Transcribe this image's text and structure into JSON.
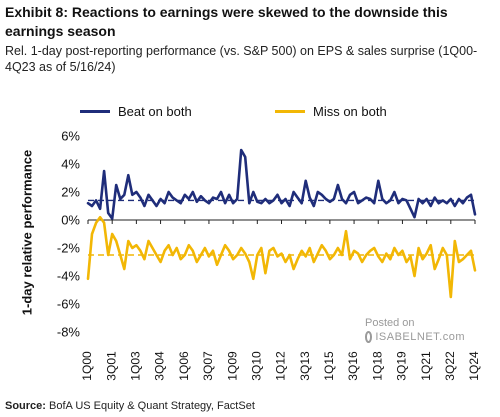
{
  "title": "Exhibit 8: Reactions to earnings were skewed to the downside this earnings season",
  "subtitle": "Rel. 1-day post-reporting performance (vs. S&P 500) on EPS & sales surprise (1Q00-4Q23 as of 5/16/24)",
  "source_label": "Source:",
  "source_text": "BofA US Equity & Quant Strategy, FactSet",
  "watermark": {
    "posted": "Posted on",
    "brand": "ISABELNET.com"
  },
  "colors": {
    "beat": "#1f2d7a",
    "miss": "#f2b705",
    "axis": "#222222"
  },
  "chart_data": {
    "type": "line",
    "ylabel": "1-day relative performance",
    "ylim": [
      -0.08,
      0.06
    ],
    "yticks": [
      "6%",
      "4%",
      "2%",
      "0%",
      "-2%",
      "-4%",
      "-6%",
      "-8%"
    ],
    "yticks_values": [
      0.06,
      0.04,
      0.02,
      0.0,
      -0.02,
      -0.04,
      -0.06,
      -0.08
    ],
    "x_tick_labels": [
      "1Q00",
      "3Q01",
      "1Q03",
      "3Q04",
      "1Q06",
      "3Q07",
      "1Q09",
      "3Q10",
      "1Q12",
      "3Q13",
      "1Q15",
      "3Q16",
      "1Q18",
      "3Q19",
      "1Q21",
      "3Q22",
      "1Q24"
    ],
    "x_tick_every": 6,
    "n_points": 97,
    "legend_position": "top",
    "series": [
      {
        "name": "Beat on both",
        "average": 0.014,
        "values": [
          0.012,
          0.01,
          0.014,
          0.008,
          0.035,
          0.005,
          0.001,
          0.025,
          0.015,
          0.018,
          0.032,
          0.018,
          0.02,
          0.016,
          0.01,
          0.018,
          0.014,
          0.01,
          0.015,
          0.012,
          0.02,
          0.016,
          0.014,
          0.012,
          0.018,
          0.015,
          0.02,
          0.013,
          0.017,
          0.014,
          0.012,
          0.016,
          0.015,
          0.02,
          0.012,
          0.018,
          0.012,
          0.015,
          0.05,
          0.045,
          0.012,
          0.02,
          0.013,
          0.012,
          0.015,
          0.012,
          0.014,
          0.018,
          0.012,
          0.015,
          0.01,
          0.02,
          0.016,
          0.012,
          0.028,
          0.016,
          0.01,
          0.02,
          0.018,
          0.015,
          0.013,
          0.015,
          0.025,
          0.015,
          0.012,
          0.018,
          0.02,
          0.012,
          0.014,
          0.016,
          0.015,
          0.012,
          0.028,
          0.015,
          0.012,
          0.014,
          0.02,
          0.012,
          0.015,
          0.014,
          0.008,
          0.002,
          0.015,
          0.012,
          0.015,
          0.01,
          0.016,
          0.012,
          0.014,
          0.012,
          0.015,
          0.01,
          0.015,
          0.012,
          0.016,
          0.018,
          0.004
        ]
      },
      {
        "name": "Miss on both",
        "average": -0.025,
        "values": [
          -0.042,
          -0.01,
          -0.002,
          0.002,
          -0.002,
          -0.025,
          -0.01,
          -0.015,
          -0.025,
          -0.035,
          -0.015,
          -0.02,
          -0.018,
          -0.022,
          -0.028,
          -0.015,
          -0.02,
          -0.025,
          -0.03,
          -0.022,
          -0.018,
          -0.025,
          -0.02,
          -0.028,
          -0.025,
          -0.018,
          -0.022,
          -0.03,
          -0.025,
          -0.02,
          -0.026,
          -0.022,
          -0.032,
          -0.025,
          -0.018,
          -0.022,
          -0.028,
          -0.025,
          -0.02,
          -0.024,
          -0.03,
          -0.042,
          -0.025,
          -0.02,
          -0.038,
          -0.022,
          -0.02,
          -0.026,
          -0.024,
          -0.03,
          -0.025,
          -0.035,
          -0.028,
          -0.022,
          -0.026,
          -0.02,
          -0.03,
          -0.024,
          -0.018,
          -0.022,
          -0.028,
          -0.025,
          -0.02,
          -0.025,
          -0.008,
          -0.028,
          -0.022,
          -0.024,
          -0.03,
          -0.025,
          -0.022,
          -0.02,
          -0.026,
          -0.03,
          -0.024,
          -0.028,
          -0.02,
          -0.025,
          -0.022,
          -0.03,
          -0.026,
          -0.04,
          -0.02,
          -0.028,
          -0.024,
          -0.018,
          -0.035,
          -0.028,
          -0.02,
          -0.025,
          -0.055,
          -0.015,
          -0.03,
          -0.028,
          -0.025,
          -0.022,
          -0.036
        ]
      }
    ]
  }
}
